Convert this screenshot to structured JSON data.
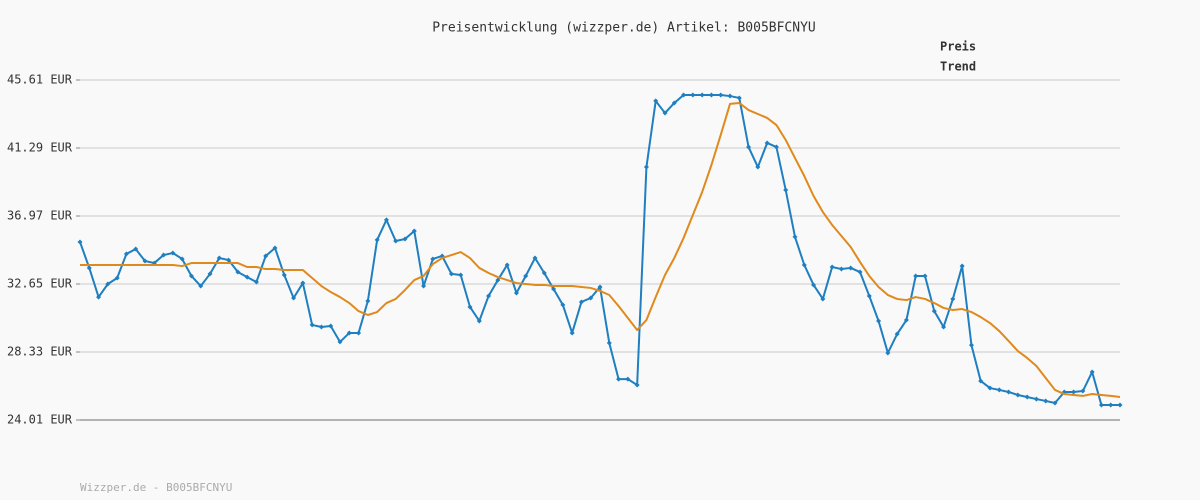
{
  "chart_data": {
    "type": "line",
    "title": "Preisentwicklung (wizzper.de) Artikel: B005BFCNYU",
    "footer": "Wizzper.de - B005BFCNYU",
    "ylim": [
      24.01,
      45.61
    ],
    "yticks": [
      {
        "value": 24.01,
        "label": "24.01 EUR"
      },
      {
        "value": 28.33,
        "label": "28.33 EUR"
      },
      {
        "value": 32.65,
        "label": "32.65 EUR"
      },
      {
        "value": 36.97,
        "label": "36.97 EUR"
      },
      {
        "value": 41.29,
        "label": "41.29 EUR"
      },
      {
        "value": 45.61,
        "label": "45.61 EUR"
      }
    ],
    "grid": true,
    "legend_position": "top-right",
    "series": [
      {
        "name": "Preis",
        "color": "#1f7fc0",
        "markers": true,
        "values": [
          35.32,
          33.67,
          31.82,
          32.65,
          33.03,
          34.56,
          34.87,
          34.11,
          33.98,
          34.49,
          34.62,
          34.24,
          33.16,
          32.52,
          33.29,
          34.3,
          34.17,
          33.41,
          33.09,
          32.78,
          34.43,
          34.94,
          33.22,
          31.76,
          32.71,
          30.05,
          29.92,
          29.98,
          28.97,
          29.54,
          29.54,
          31.57,
          35.45,
          36.72,
          35.38,
          35.51,
          36.02,
          32.52,
          34.24,
          34.43,
          33.29,
          33.22,
          31.19,
          30.3,
          31.89,
          32.9,
          33.86,
          32.08,
          33.16,
          34.3,
          33.35,
          32.33,
          31.32,
          29.54,
          31.51,
          31.76,
          32.46,
          28.9,
          26.61,
          26.61,
          26.23,
          40.08,
          44.28,
          43.51,
          44.15,
          44.66,
          44.66,
          44.66,
          44.66,
          44.66,
          44.59,
          44.47,
          41.35,
          40.08,
          41.61,
          41.35,
          38.62,
          35.64,
          33.86,
          32.59,
          31.7,
          33.73,
          33.6,
          33.67,
          33.41,
          31.89,
          30.3,
          28.27,
          29.47,
          30.36,
          33.16,
          33.16,
          30.93,
          29.92,
          31.7,
          33.79,
          28.77,
          26.49,
          26.04,
          25.92,
          25.79,
          25.6,
          25.47,
          25.34,
          25.22,
          25.09,
          25.79,
          25.79,
          25.85,
          27.06,
          24.96,
          24.96,
          24.96
        ]
      },
      {
        "name": "Trend",
        "color": "#e0891c",
        "markers": false,
        "values": [
          33.86,
          33.86,
          33.86,
          33.86,
          33.86,
          33.86,
          33.86,
          33.86,
          33.86,
          33.86,
          33.86,
          33.79,
          33.98,
          33.98,
          33.98,
          33.98,
          33.98,
          33.98,
          33.73,
          33.73,
          33.6,
          33.6,
          33.54,
          33.54,
          33.54,
          33.03,
          32.52,
          32.14,
          31.82,
          31.44,
          30.93,
          30.68,
          30.87,
          31.44,
          31.7,
          32.27,
          32.9,
          33.16,
          33.92,
          34.3,
          34.49,
          34.68,
          34.3,
          33.67,
          33.35,
          33.09,
          32.9,
          32.71,
          32.65,
          32.59,
          32.59,
          32.52,
          32.52,
          32.52,
          32.46,
          32.4,
          32.21,
          31.95,
          31.25,
          30.49,
          29.73,
          30.36,
          31.82,
          33.22,
          34.3,
          35.57,
          37.03,
          38.49,
          40.21,
          42.12,
          44.09,
          44.15,
          43.7,
          43.45,
          43.2,
          42.75,
          41.8,
          40.65,
          39.51,
          38.24,
          37.22,
          36.4,
          35.7,
          35.0,
          34.05,
          33.16,
          32.46,
          31.95,
          31.7,
          31.63,
          31.82,
          31.7,
          31.44,
          31.13,
          31.0,
          31.06,
          30.87,
          30.55,
          30.17,
          29.66,
          29.03,
          28.39,
          27.95,
          27.44,
          26.68,
          25.92,
          25.66,
          25.6,
          25.54,
          25.66,
          25.6,
          25.54,
          25.47
        ]
      }
    ]
  }
}
